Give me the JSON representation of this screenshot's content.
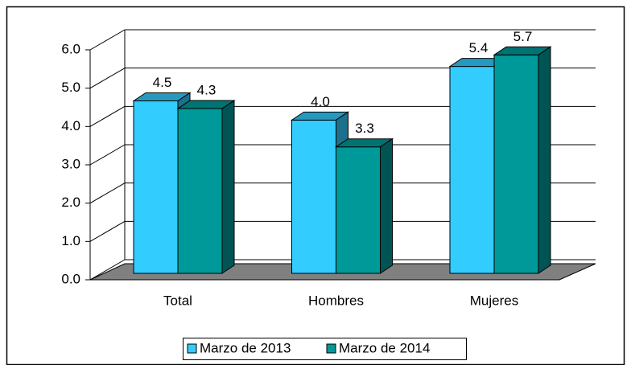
{
  "chart_data": {
    "type": "bar3d",
    "categories": [
      "Total",
      "Hombres",
      "Mujeres"
    ],
    "series": [
      {
        "name": "Marzo de 2013",
        "color": "#33ccff",
        "values": [
          4.5,
          4.0,
          5.4
        ],
        "value_labels": [
          "4.5",
          "4.0",
          "5.4"
        ]
      },
      {
        "name": "Marzo de 2014",
        "color": "#009999",
        "values": [
          4.3,
          3.3,
          5.7
        ],
        "value_labels": [
          "4.3",
          "3.3",
          "5.7"
        ]
      }
    ],
    "ylim": [
      0,
      6
    ],
    "yticks": [
      {
        "value": 0,
        "label": "0.0"
      },
      {
        "value": 1,
        "label": "1.0"
      },
      {
        "value": 2,
        "label": "2.0"
      },
      {
        "value": 3,
        "label": "3.0"
      },
      {
        "value": 4,
        "label": "4.0"
      },
      {
        "value": 5,
        "label": "5.0"
      },
      {
        "value": 6,
        "label": "6.0"
      }
    ],
    "grid": true,
    "legend": "bottom"
  }
}
